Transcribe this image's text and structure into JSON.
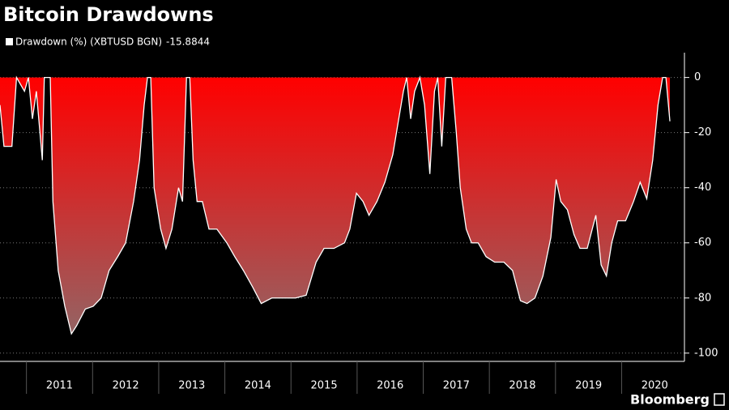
{
  "chart_data": {
    "type": "area",
    "title": "Bitcoin Drawdowns",
    "series": [
      {
        "name": "Drawdown (%) (XBTUSD BGN)",
        "color": "#ffffff",
        "value_label": "-15.8844",
        "x": [
          2010.6,
          2010.66,
          2010.78,
          2010.85,
          2010.97,
          2011.03,
          2011.09,
          2011.15,
          2011.24,
          2011.27,
          2011.36,
          2011.4,
          2011.48,
          2011.58,
          2011.68,
          2011.76,
          2011.89,
          2012.01,
          2012.13,
          2012.25,
          2012.38,
          2012.5,
          2012.62,
          2012.71,
          2012.78,
          2012.83,
          2012.88,
          2012.93,
          2013.03,
          2013.11,
          2013.2,
          2013.3,
          2013.36,
          2013.42,
          2013.47,
          2013.52,
          2013.58,
          2013.66,
          2013.76,
          2013.88,
          2014.03,
          2014.15,
          2014.28,
          2014.42,
          2014.55,
          2014.71,
          2014.89,
          2015.07,
          2015.23,
          2015.38,
          2015.5,
          2015.65,
          2015.81,
          2015.89,
          2015.99,
          2016.09,
          2016.18,
          2016.3,
          2016.42,
          2016.54,
          2016.63,
          2016.7,
          2016.75,
          2016.81,
          2016.87,
          2016.95,
          2017.02,
          2017.1,
          2017.17,
          2017.22,
          2017.28,
          2017.34,
          2017.43,
          2017.5,
          2017.56,
          2017.65,
          2017.73,
          2017.83,
          2017.95,
          2018.08,
          2018.22,
          2018.35,
          2018.47,
          2018.57,
          2018.69,
          2018.81,
          2018.93,
          2019.01,
          2019.08,
          2019.18,
          2019.28,
          2019.37,
          2019.48,
          2019.61,
          2019.69,
          2019.77,
          2019.85,
          2019.94,
          2020.06,
          2020.18,
          2020.28,
          2020.38,
          2020.47,
          2020.55,
          2020.62,
          2020.67,
          2020.73
        ],
        "values": [
          -10,
          -25,
          -25,
          0,
          -5,
          0,
          -15,
          -5,
          -30,
          0,
          0,
          -45,
          -70,
          -83,
          -93,
          -90,
          -84,
          -83,
          -80,
          -70,
          -65,
          -60,
          -45,
          -30,
          -10,
          0,
          0,
          -40,
          -55,
          -62,
          -55,
          -40,
          -45,
          0,
          0,
          -30,
          -45,
          -45,
          -55,
          -55,
          -60,
          -65,
          -70,
          -76,
          -82,
          -80,
          -80,
          -80,
          -79,
          -67,
          -62,
          -62,
          -60,
          -55,
          -42,
          -45,
          -50,
          -45,
          -38,
          -28,
          -15,
          -5,
          0,
          -15,
          -5,
          0,
          -10,
          -35,
          -5,
          0,
          -25,
          0,
          0,
          -20,
          -40,
          -55,
          -60,
          -60,
          -65,
          -67,
          -67,
          -70,
          -81,
          -82,
          -80,
          -72,
          -58,
          -37,
          -45,
          -48,
          -57,
          -62,
          -62,
          -50,
          -68,
          -72,
          -60,
          -52,
          -52,
          -45,
          -38,
          -44,
          -30,
          -10,
          0,
          0,
          -15.8844
        ]
      }
    ],
    "xlim": [
      2010.6,
      2020.95
    ],
    "xticks": [
      2011,
      2012,
      2013,
      2014,
      2015,
      2016,
      2017,
      2018,
      2019,
      2020
    ],
    "ylim": [
      -103,
      9
    ],
    "yticks": [
      0,
      -20,
      -40,
      -60,
      -80,
      -100
    ],
    "grid": true,
    "fill_top_color": "#ff0000",
    "fill_bottom_color": "#8c6b6b",
    "source": "Bloomberg"
  }
}
